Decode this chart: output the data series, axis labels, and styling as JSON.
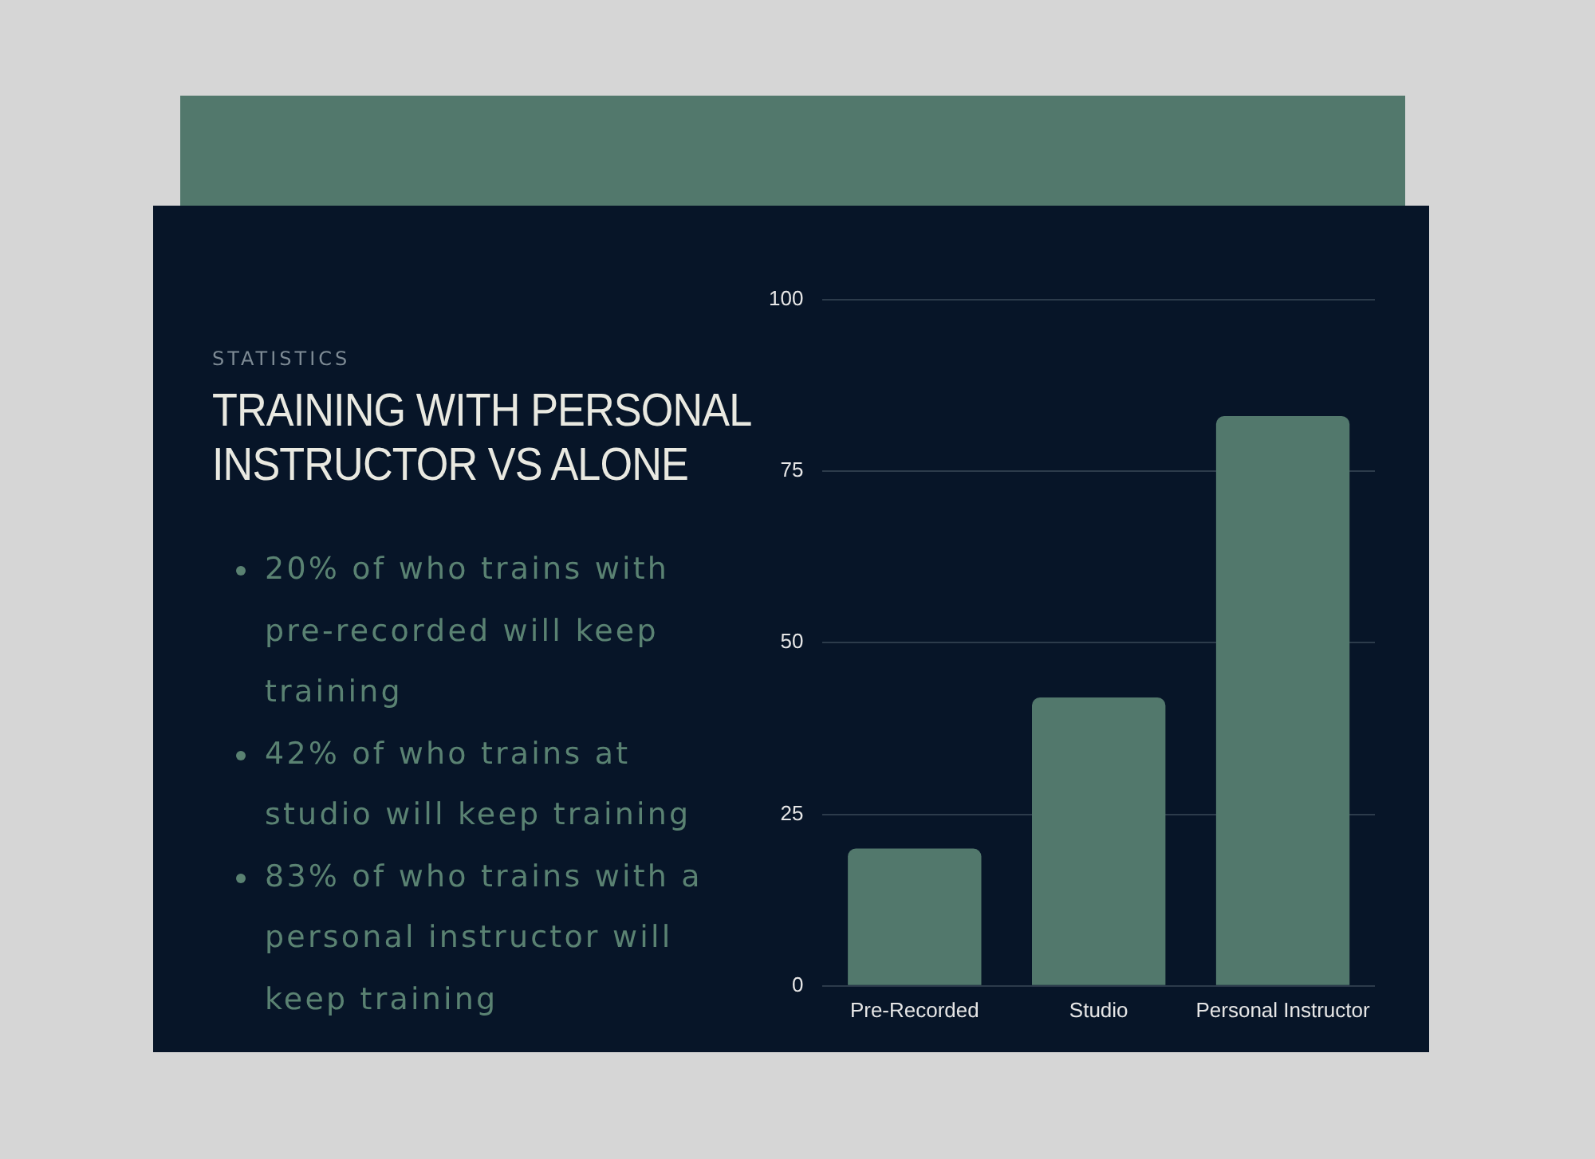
{
  "chart_data": {
    "type": "bar",
    "subtitle": "STATISTICS",
    "title": "TRAINING WITH PERSONAL INSTRUCTOR VS ALONE",
    "categories": [
      "Pre-Recorded",
      "Studio",
      "Personal Instructor"
    ],
    "values": [
      20,
      42,
      83
    ],
    "color": "#52786c",
    "ylim": [
      0,
      100
    ],
    "yticks": [
      0,
      25,
      50,
      75,
      100
    ],
    "grid": "y",
    "annotations": [
      "20% of who trains with pre-recorded will keep training",
      "42% of who trains at studio will keep training",
      "83% of who trains with a personal instructor will keep training"
    ]
  }
}
